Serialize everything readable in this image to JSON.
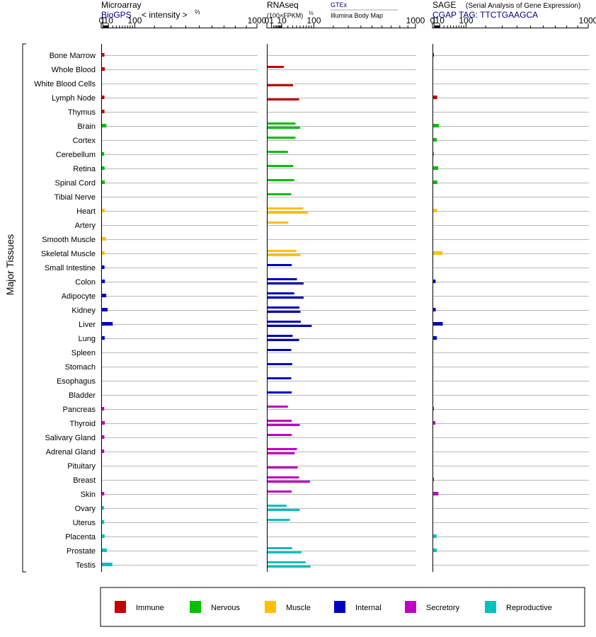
{
  "panels": {
    "microarray": {
      "title": "Microarray",
      "source": "BioGPS",
      "unit_prefix": "< intensity >",
      "unit_exp": "⅔"
    },
    "rnaseq": {
      "title": "RNAseq",
      "unit_prefix": "(100×FPKM)",
      "unit_exp": "½",
      "source1": "GTEx",
      "source2": "Illumina Body Map"
    },
    "sage": {
      "title": "SAGE",
      "subtitle": "(Serial Analysis of Gene Expression)",
      "tag": "CGAP  TAG: TTCTGAAGCA"
    }
  },
  "y_group_label": "Major Tissues",
  "colors": {
    "Immune": "#c00000",
    "Nervous": "#00c000",
    "Muscle": "#ffc000",
    "Internal": "#0000c0",
    "Secretory": "#c000c0",
    "Reproductive": "#00c0c0",
    "source_link": "#000080"
  },
  "legend": [
    "Immune",
    "Nervous",
    "Muscle",
    "Internal",
    "Secretory",
    "Reproductive"
  ],
  "chart_data": [
    {
      "type": "bar",
      "title": "Microarray",
      "scale": "power 2/3",
      "xlim": [
        0,
        1000
      ],
      "ticks": [
        "0",
        "1",
        "10",
        "100",
        "1000"
      ],
      "categories": [
        "Bone Marrow",
        "Whole Blood",
        "White Blood Cells",
        "Lymph Node",
        "Thymus",
        "Brain",
        "Cortex",
        "Cerebellum",
        "Retina",
        "Spinal Cord",
        "Tibial Nerve",
        "Heart",
        "Artery",
        "Smooth Muscle",
        "Skeletal Muscle",
        "Small Intestine",
        "Colon",
        "Adipocyte",
        "Kidney",
        "Liver",
        "Lung",
        "Spleen",
        "Stomach",
        "Esophagus",
        "Bladder",
        "Pancreas",
        "Thyroid",
        "Salivary Gland",
        "Adrenal Gland",
        "Pituitary",
        "Breast",
        "Skin",
        "Ovary",
        "Uterus",
        "Placenta",
        "Prostate",
        "Testis"
      ],
      "groups": [
        "Immune",
        "Immune",
        "Immune",
        "Immune",
        "Immune",
        "Nervous",
        "Nervous",
        "Nervous",
        "Nervous",
        "Nervous",
        "Nervous",
        "Muscle",
        "Muscle",
        "Muscle",
        "Muscle",
        "Internal",
        "Internal",
        "Internal",
        "Internal",
        "Internal",
        "Internal",
        "Internal",
        "Internal",
        "Internal",
        "Internal",
        "Secretory",
        "Secretory",
        "Secretory",
        "Secretory",
        "Secretory",
        "Secretory",
        "Secretory",
        "Reproductive",
        "Reproductive",
        "Reproductive",
        "Reproductive",
        "Reproductive"
      ],
      "values": [
        2.9,
        3.4,
        null,
        2.9,
        3.0,
        6.0,
        null,
        2.5,
        3.2,
        3.4,
        null,
        3.3,
        null,
        5.4,
        3.2,
        3.0,
        3.6,
        5.8,
        8.3,
        20,
        3.3,
        null,
        null,
        null,
        null,
        2.6,
        3.5,
        2.8,
        2.6,
        null,
        null,
        2.7,
        2.3,
        2.6,
        3.2,
        6.8,
        19
      ]
    },
    {
      "type": "bar",
      "title": "RNAseq",
      "scale": "sqrt",
      "xlim": [
        0,
        1000
      ],
      "ticks": [
        "0",
        "1",
        "10",
        "100",
        "1000"
      ],
      "series": [
        {
          "name": "GTEx",
          "values": [
            null,
            13,
            null,
            null,
            null,
            37,
            37,
            20,
            31,
            34,
            27,
            60,
            21,
            null,
            39,
            28,
            41,
            34,
            48,
            52,
            30,
            27,
            29,
            27,
            28,
            20,
            28,
            28,
            41,
            null,
            47,
            28,
            18,
            24,
            null,
            29,
            68
          ]
        },
        {
          "name": "Illumina Body Map",
          "values": [
            null,
            null,
            31,
            47,
            null,
            50,
            null,
            null,
            null,
            null,
            null,
            76,
            null,
            null,
            51,
            null,
            61,
            61,
            51,
            91,
            47,
            null,
            null,
            null,
            null,
            null,
            49,
            null,
            35,
            43,
            84,
            null,
            49,
            null,
            null,
            54,
            86
          ]
        }
      ]
    },
    {
      "type": "bar",
      "title": "SAGE",
      "scale": "power 2/3",
      "xlim": [
        0,
        1000
      ],
      "ticks": [
        "0",
        "1",
        "10",
        "100",
        "1000"
      ],
      "values": [
        0.1,
        null,
        null,
        5.2,
        null,
        8.4,
        4.5,
        0.1,
        6.9,
        5.7,
        null,
        5.0,
        null,
        null,
        16,
        null,
        2.8,
        null,
        3.0,
        17,
        4.7,
        null,
        null,
        null,
        null,
        0.1,
        2.6,
        null,
        null,
        null,
        0.1,
        7.4,
        null,
        null,
        4.2,
        4.5,
        null
      ]
    }
  ]
}
